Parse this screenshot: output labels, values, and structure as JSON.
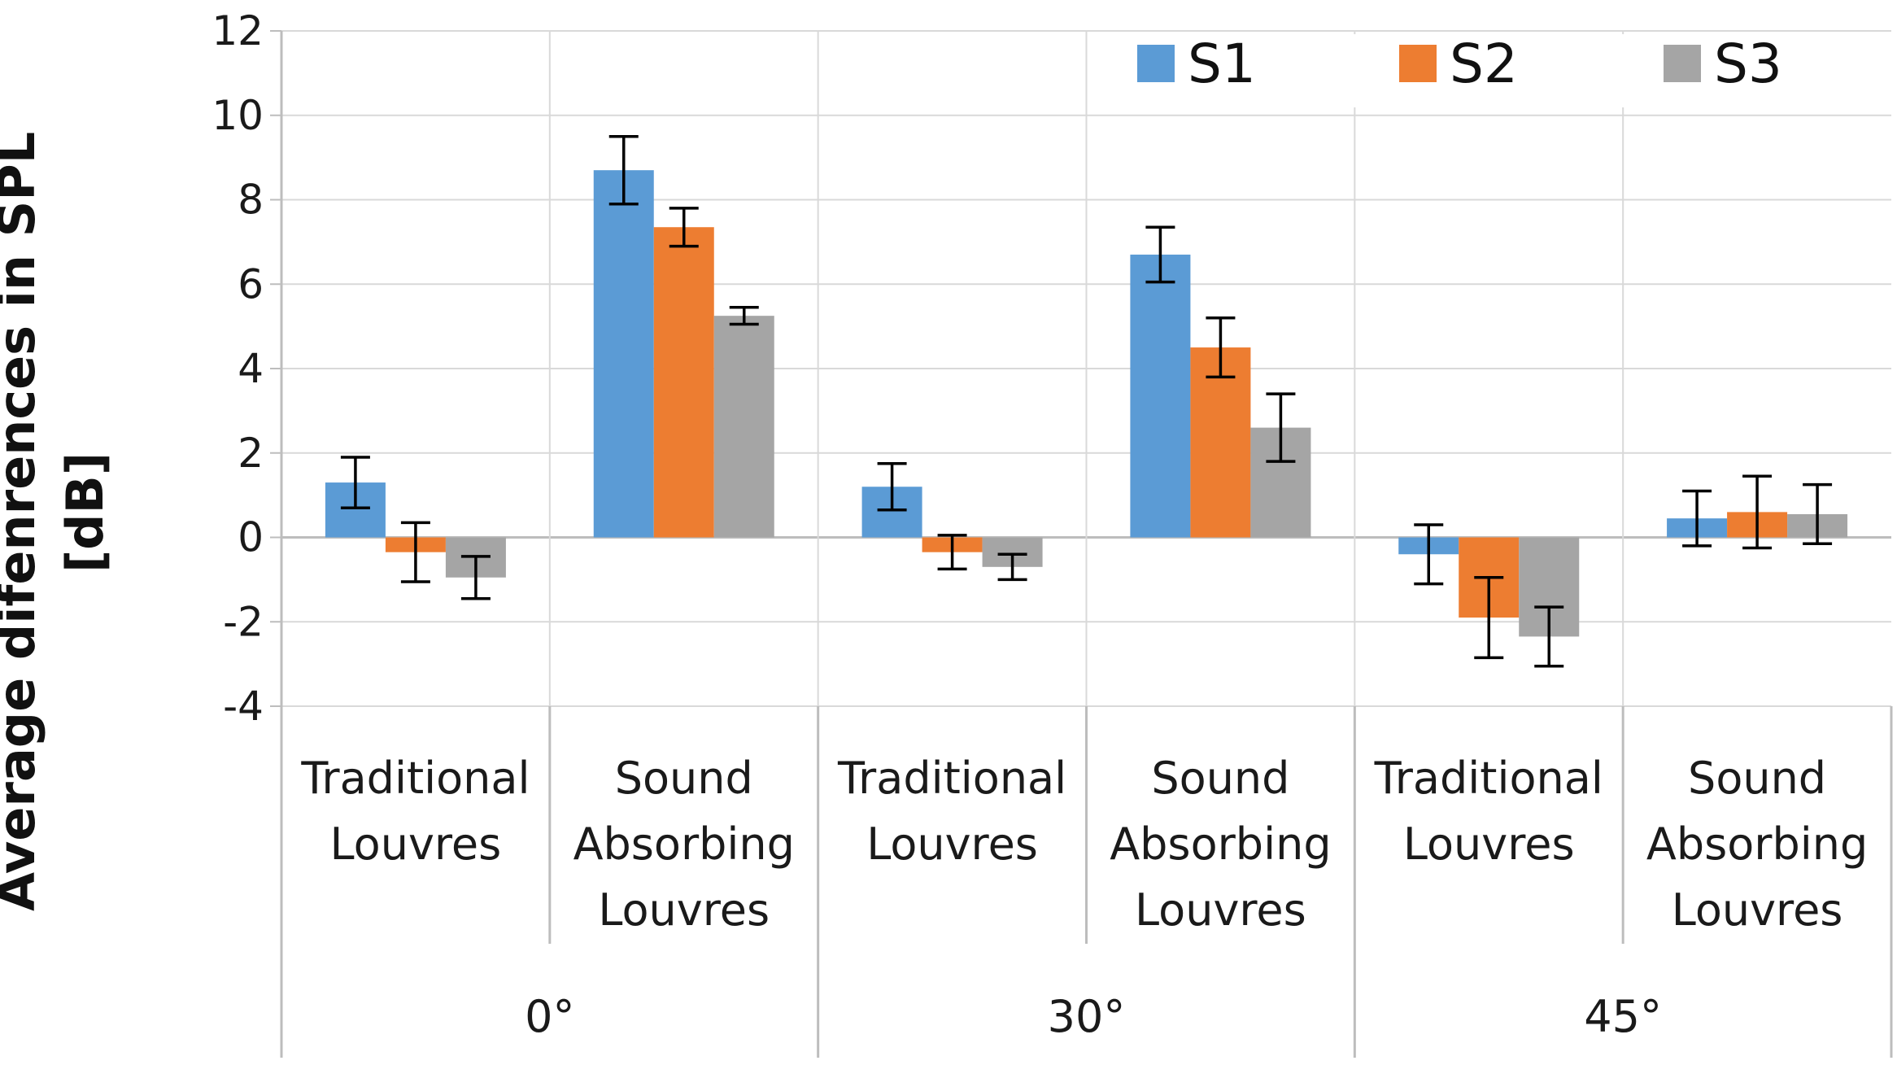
{
  "chart_data": {
    "type": "bar",
    "title": "",
    "ylabel_lines": [
      "Average difenrences in SPL",
      "[dB]"
    ],
    "xlabel": "",
    "ylim": [
      -4,
      12
    ],
    "yticks": [
      -4,
      -2,
      0,
      2,
      4,
      6,
      8,
      10,
      12
    ],
    "grid": true,
    "legend_position": "top-right",
    "groups": [
      {
        "label": "0°",
        "categories": [
          {
            "lines": [
              "Traditional",
              "Louvres"
            ]
          },
          {
            "lines": [
              "Sound",
              "Absorbing",
              "Louvres"
            ]
          }
        ]
      },
      {
        "label": "30°",
        "categories": [
          {
            "lines": [
              "Traditional",
              "Louvres"
            ]
          },
          {
            "lines": [
              "Sound",
              "Absorbing",
              "Louvres"
            ]
          }
        ]
      },
      {
        "label": "45°",
        "categories": [
          {
            "lines": [
              "Traditional",
              "Louvres"
            ]
          },
          {
            "lines": [
              "Sound",
              "Absorbing",
              "Louvres"
            ]
          }
        ]
      }
    ],
    "series": [
      {
        "name": "S1",
        "color": "#5b9bd5",
        "values": [
          1.3,
          8.7,
          1.2,
          6.7,
          -0.4,
          0.45
        ],
        "errors": [
          0.6,
          0.8,
          0.55,
          0.65,
          0.7,
          0.65
        ]
      },
      {
        "name": "S2",
        "color": "#ed7d31",
        "values": [
          -0.35,
          7.35,
          -0.35,
          4.5,
          -1.9,
          0.6
        ],
        "errors": [
          0.7,
          0.45,
          0.4,
          0.7,
          0.95,
          0.85
        ]
      },
      {
        "name": "S3",
        "color": "#a5a5a5",
        "values": [
          -0.95,
          5.25,
          -0.7,
          2.6,
          -2.35,
          0.55
        ],
        "errors": [
          0.5,
          0.2,
          0.3,
          0.8,
          0.7,
          0.7
        ]
      }
    ]
  }
}
